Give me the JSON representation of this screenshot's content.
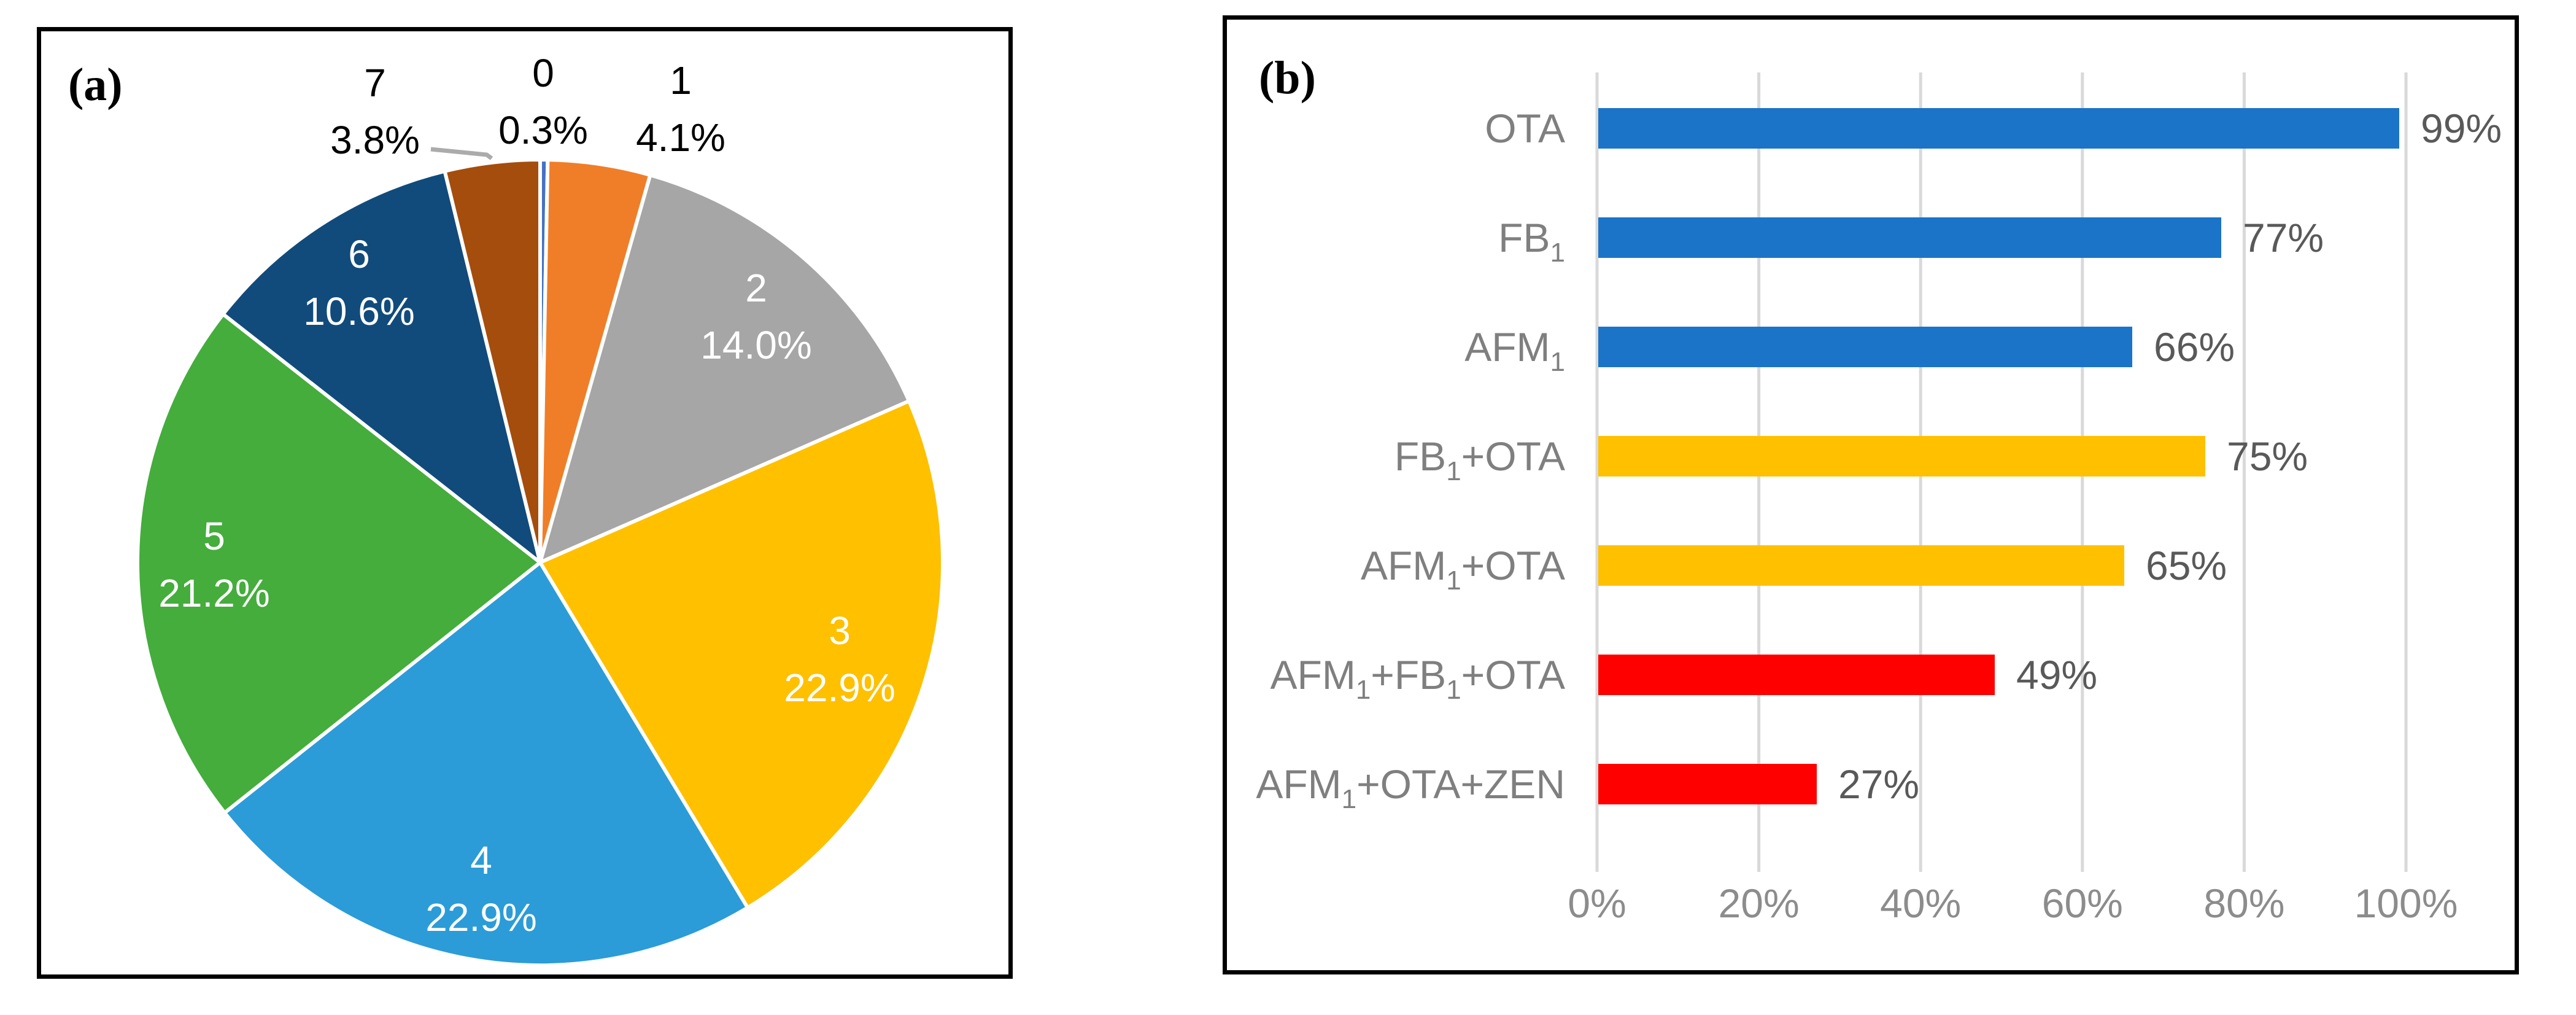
{
  "figure": {
    "panel_a_tag": "(a)",
    "panel_b_tag": "(b)"
  },
  "colors": {
    "panel_border": "#000000",
    "pie_slice_colors": [
      "#4472C4",
      "#F07E28",
      "#A6A6A6",
      "#FFC000",
      "#2B9CD8",
      "#44AD3C",
      "#114B7C",
      "#A54D0D"
    ],
    "pie_gap": "#FFFFFF",
    "pie_inside_label": "#FFFFFF",
    "pie_outside_label": "#000000",
    "leader_line": "#ABABAB",
    "bar_colors": [
      "#1B74C8",
      "#1B74C8",
      "#1B74C8",
      "#FFC000",
      "#FFC000",
      "#FF0000",
      "#FF0000"
    ],
    "gridline": "#D9D9D9",
    "category_label": "#7F7F7F",
    "value_label": "#595959",
    "tick_label": "#8C8C8C"
  },
  "chart_data": [
    {
      "type": "pie",
      "panel": "a",
      "title": "",
      "categories": [
        "0",
        "1",
        "2",
        "3",
        "4",
        "5",
        "6",
        "7"
      ],
      "values": [
        0.3,
        4.1,
        14.0,
        22.9,
        22.9,
        21.2,
        10.6,
        3.8
      ],
      "percent_labels": [
        "0.3%",
        "4.1%",
        "14.0%",
        "22.9%",
        "22.9%",
        "21.2%",
        "10.6%",
        "3.8%"
      ],
      "start_angle": "12-oclock",
      "direction": "clockwise",
      "label_placement": [
        "outside",
        "outside",
        "inside",
        "inside",
        "inside",
        "inside",
        "inside",
        "outside"
      ],
      "legend": "none"
    },
    {
      "type": "bar",
      "panel": "b",
      "orientation": "horizontal",
      "title": "",
      "categories": [
        "OTA",
        "FB1",
        "AFM1",
        "FB1+OTA",
        "AFM1+OTA",
        "AFM1+FB1+OTA",
        "AFM1+OTA+ZEN"
      ],
      "categories_rich": [
        [
          "OTA"
        ],
        [
          "FB",
          {
            "sub": "1"
          }
        ],
        [
          "AFM",
          {
            "sub": "1"
          }
        ],
        [
          "FB",
          {
            "sub": "1"
          },
          "+OTA"
        ],
        [
          "AFM",
          {
            "sub": "1"
          },
          "+OTA"
        ],
        [
          "AFM",
          {
            "sub": "1"
          },
          "+FB",
          {
            "sub": "1"
          },
          "+OTA"
        ],
        [
          "AFM",
          {
            "sub": "1"
          },
          "+OTA+ZEN"
        ]
      ],
      "values": [
        99,
        77,
        66,
        75,
        65,
        49,
        27
      ],
      "value_labels": [
        "99%",
        "77%",
        "66%",
        "75%",
        "65%",
        "49%",
        "27%"
      ],
      "x_ticks": [
        "0%",
        "20%",
        "40%",
        "60%",
        "80%",
        "100%"
      ],
      "xlim": [
        0,
        100
      ],
      "grid": true,
      "legend": "none"
    }
  ]
}
